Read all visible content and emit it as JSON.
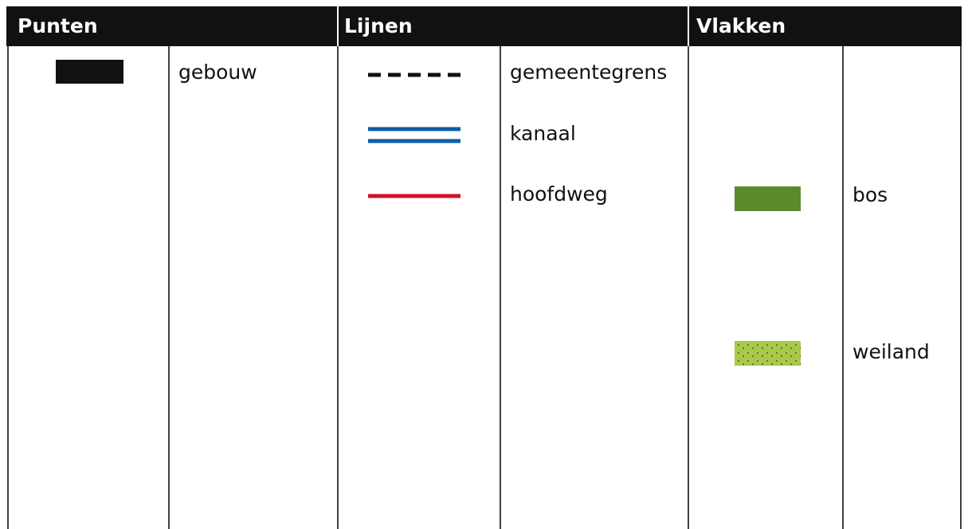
{
  "columns": [
    {
      "title": "Punten",
      "items": [
        {
          "label": "gebouw"
        }
      ]
    },
    {
      "title": "Lijnen",
      "items": [
        {
          "label": "gemeentegrens"
        },
        {
          "label": "kanaal"
        },
        {
          "label": "hoofdweg"
        }
      ]
    },
    {
      "title": "Vlakken",
      "items": [
        {
          "label": "bos"
        },
        {
          "label": "weiland"
        }
      ]
    }
  ]
}
